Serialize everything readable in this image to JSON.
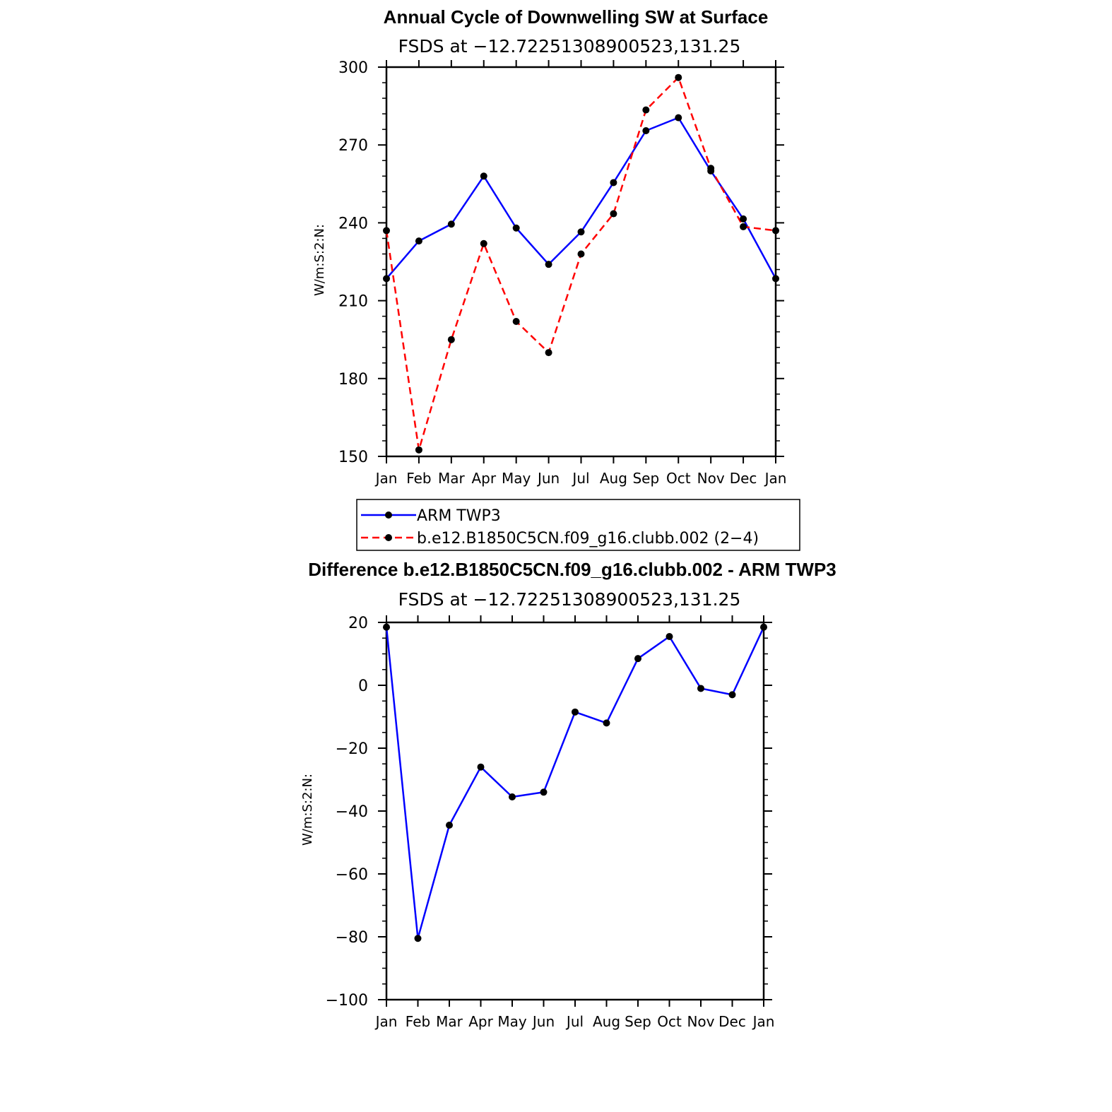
{
  "chart_data": [
    {
      "type": "line",
      "title": "Annual Cycle of Downwelling SW at Surface",
      "subtitle": "FSDS at −12.72251308900523,131.25",
      "ylabel": "W/m:S:2:N:",
      "xlabel": "",
      "categories": [
        "Jan",
        "Feb",
        "Mar",
        "Apr",
        "May",
        "Jun",
        "Jul",
        "Aug",
        "Sep",
        "Oct",
        "Nov",
        "Dec",
        "Jan"
      ],
      "ylim": [
        150,
        300
      ],
      "yticks": [
        "150",
        "180",
        "210",
        "240",
        "270",
        "300"
      ],
      "series": [
        {
          "name": "ARM TWP3",
          "color": "#0000ff",
          "dash": "solid",
          "values": [
            218.5,
            233,
            239.5,
            258,
            238,
            224,
            236.5,
            255.5,
            275.5,
            280.5,
            260,
            241.5,
            218.5
          ]
        },
        {
          "name": "b.e12.B1850C5CN.f09_g16.clubb.002 (2−4)",
          "color": "#ff0000",
          "dash": "dashed",
          "values": [
            237,
            152.5,
            195,
            232,
            202,
            190,
            228,
            243.5,
            283.5,
            296,
            261,
            238.5,
            237
          ]
        }
      ],
      "legend_position": "below"
    },
    {
      "type": "line",
      "title": "Difference b.e12.B1850C5CN.f09_g16.clubb.002 - ARM TWP3",
      "subtitle": "FSDS at −12.72251308900523,131.25",
      "ylabel": "W/m:S:2:N:",
      "xlabel": "",
      "categories": [
        "Jan",
        "Feb",
        "Mar",
        "Apr",
        "May",
        "Jun",
        "Jul",
        "Aug",
        "Sep",
        "Oct",
        "Nov",
        "Dec",
        "Jan"
      ],
      "ylim": [
        -100,
        20
      ],
      "yticks": [
        "−100",
        "−80",
        "−60",
        "−40",
        "−20",
        "0",
        "20"
      ],
      "series": [
        {
          "name": "Difference",
          "color": "#0000ff",
          "dash": "solid",
          "values": [
            18.5,
            -80.5,
            -44.5,
            -26,
            -35.5,
            -34,
            -8.5,
            -12,
            8.5,
            15.5,
            -1,
            -3,
            18.5
          ]
        }
      ]
    }
  ]
}
